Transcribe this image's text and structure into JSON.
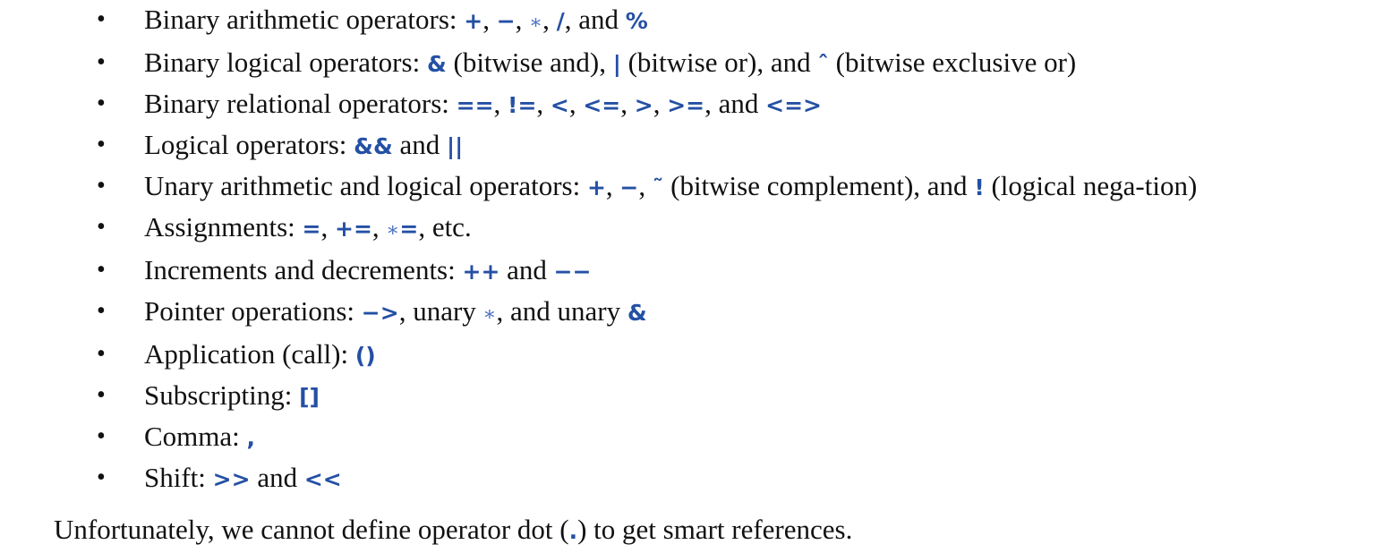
{
  "items": [
    {
      "id": "binary-arithmetic",
      "segments": [
        {
          "t": "text",
          "v": "Binary arithmetic operators: "
        },
        {
          "t": "code",
          "v": "+"
        },
        {
          "t": "text",
          "v": ", "
        },
        {
          "t": "code",
          "v": "−"
        },
        {
          "t": "text",
          "v": ", "
        },
        {
          "t": "star",
          "v": "∗"
        },
        {
          "t": "text",
          "v": ", "
        },
        {
          "t": "code",
          "v": "/"
        },
        {
          "t": "text",
          "v": ", and "
        },
        {
          "t": "code",
          "v": "%"
        }
      ]
    },
    {
      "id": "binary-logical",
      "segments": [
        {
          "t": "text",
          "v": "Binary logical operators: "
        },
        {
          "t": "code",
          "v": "&"
        },
        {
          "t": "text",
          "v": " (bitwise and), "
        },
        {
          "t": "code",
          "v": "|"
        },
        {
          "t": "text",
          "v": " (bitwise or), and "
        },
        {
          "t": "code",
          "v": "ˆ"
        },
        {
          "t": "text",
          "v": " (bitwise exclusive or)"
        }
      ]
    },
    {
      "id": "binary-relational",
      "segments": [
        {
          "t": "text",
          "v": "Binary relational operators: "
        },
        {
          "t": "code",
          "v": "=="
        },
        {
          "t": "text",
          "v": ", "
        },
        {
          "t": "code",
          "v": "!="
        },
        {
          "t": "text",
          "v": ", "
        },
        {
          "t": "code",
          "v": "<"
        },
        {
          "t": "text",
          "v": ", "
        },
        {
          "t": "code",
          "v": "<="
        },
        {
          "t": "text",
          "v": ", "
        },
        {
          "t": "code",
          "v": ">"
        },
        {
          "t": "text",
          "v": ", "
        },
        {
          "t": "code",
          "v": ">="
        },
        {
          "t": "text",
          "v": ", and "
        },
        {
          "t": "code",
          "v": "<=>"
        }
      ]
    },
    {
      "id": "logical",
      "segments": [
        {
          "t": "text",
          "v": "Logical operators: "
        },
        {
          "t": "code",
          "v": "&&"
        },
        {
          "t": "text",
          "v": " and "
        },
        {
          "t": "code",
          "v": "||"
        }
      ]
    },
    {
      "id": "unary",
      "justify": true,
      "segments": [
        {
          "t": "text",
          "v": "Unary arithmetic and logical operators: "
        },
        {
          "t": "code",
          "v": "+"
        },
        {
          "t": "text",
          "v": ", "
        },
        {
          "t": "code",
          "v": "−"
        },
        {
          "t": "text",
          "v": ", "
        },
        {
          "t": "code",
          "v": "˜"
        },
        {
          "t": "text",
          "v": " (bitwise complement), and "
        },
        {
          "t": "code",
          "v": "!"
        },
        {
          "t": "text",
          "v": "  (logical nega-tion)"
        }
      ]
    },
    {
      "id": "assignments",
      "segments": [
        {
          "t": "text",
          "v": "Assignments: "
        },
        {
          "t": "code",
          "v": "="
        },
        {
          "t": "text",
          "v": ", "
        },
        {
          "t": "code",
          "v": "+="
        },
        {
          "t": "text",
          "v": ", "
        },
        {
          "t": "star",
          "v": "∗"
        },
        {
          "t": "code",
          "v": "="
        },
        {
          "t": "text",
          "v": ", etc."
        }
      ]
    },
    {
      "id": "increments",
      "segments": [
        {
          "t": "text",
          "v": "Increments and decrements: "
        },
        {
          "t": "code",
          "v": "++"
        },
        {
          "t": "text",
          "v": " and "
        },
        {
          "t": "code",
          "v": "−−"
        }
      ]
    },
    {
      "id": "pointer",
      "segments": [
        {
          "t": "text",
          "v": "Pointer operations: "
        },
        {
          "t": "code",
          "v": "−>"
        },
        {
          "t": "text",
          "v": ", unary "
        },
        {
          "t": "star",
          "v": "∗"
        },
        {
          "t": "text",
          "v": ", and unary "
        },
        {
          "t": "code",
          "v": "&"
        }
      ]
    },
    {
      "id": "application",
      "segments": [
        {
          "t": "text",
          "v": "Application (call): "
        },
        {
          "t": "code",
          "v": "()"
        }
      ]
    },
    {
      "id": "subscripting",
      "segments": [
        {
          "t": "text",
          "v": "Subscripting: "
        },
        {
          "t": "code",
          "v": "[]"
        }
      ]
    },
    {
      "id": "comma",
      "segments": [
        {
          "t": "text",
          "v": "Comma: "
        },
        {
          "t": "code",
          "v": ","
        }
      ]
    },
    {
      "id": "shift",
      "segments": [
        {
          "t": "text",
          "v": "Shift: "
        },
        {
          "t": "code",
          "v": ">>"
        },
        {
          "t": "text",
          "v": " and "
        },
        {
          "t": "code",
          "v": "<<"
        }
      ]
    }
  ],
  "bullet": "•",
  "closing": {
    "before": "Unfortunately, we cannot define operator dot (",
    "code": ".",
    "after": ")  to get smart references."
  },
  "colors": {
    "code": "#2450a4",
    "text": "#111111"
  }
}
